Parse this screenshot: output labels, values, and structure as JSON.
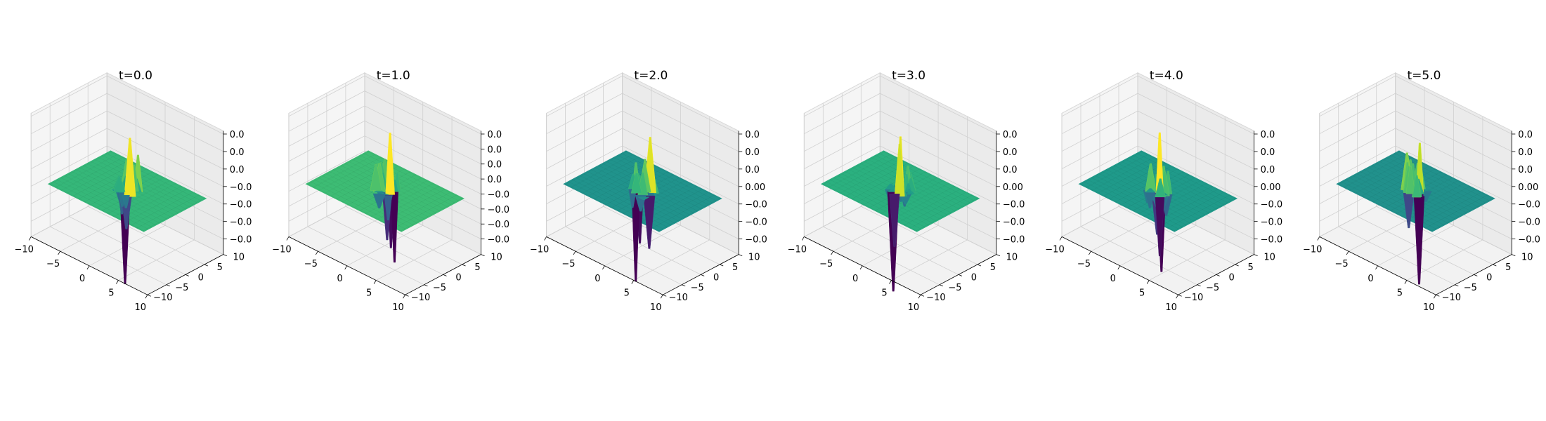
{
  "chart_data": [
    {
      "type": "surface3d",
      "title": "t=0.0",
      "x_ticks": [
        "-10",
        "-5",
        "0",
        "5",
        "10"
      ],
      "y_ticks": [
        "-10",
        "-5",
        "0",
        "5",
        "10"
      ],
      "z_ticks": [
        "0.0",
        "0.0",
        "0.0",
        "−0.0",
        "−0.0",
        "−0.0",
        "−0.0"
      ],
      "xlim": [
        -10,
        10
      ],
      "ylim": [
        -10,
        10
      ],
      "colormap": "viridis",
      "plane_color": "#35b779",
      "peak": [
        0.6,
        0.2,
        0.95
      ],
      "trough": [
        1.6,
        0.6,
        -1.0
      ]
    },
    {
      "type": "surface3d",
      "title": "t=1.0",
      "x_ticks": [
        "-10",
        "-5",
        "0",
        "5",
        "10"
      ],
      "y_ticks": [
        "-10",
        "-5",
        "0",
        "5",
        "10"
      ],
      "z_ticks": [
        "0.0",
        "0.0",
        "0.0",
        "0.0",
        "−0.0",
        "−0.0",
        "−0.0",
        "−0.0"
      ],
      "xlim": [
        -10,
        10
      ],
      "ylim": [
        -10,
        10
      ],
      "colormap": "viridis",
      "plane_color": "#3dbc74",
      "peak": [
        0.4,
        0.1,
        1.0
      ],
      "trough": [
        0.8,
        1.2,
        -1.0
      ]
    },
    {
      "type": "surface3d",
      "title": "t=2.0",
      "x_ticks": [
        "-10",
        "-5",
        "0",
        "5",
        "10"
      ],
      "y_ticks": [
        "-10",
        "-5",
        "0",
        "5",
        "10"
      ],
      "z_ticks": [
        "0.0",
        "0.0",
        "0.0",
        "0.00",
        "−0.0",
        "−0.0",
        "−0.0"
      ],
      "xlim": [
        -10,
        10
      ],
      "ylim": [
        -10,
        10
      ],
      "colormap": "viridis",
      "plane_color": "#20938c",
      "peak": [
        0.2,
        0.5,
        0.9
      ],
      "trough": [
        0.9,
        1.6,
        -1.0
      ]
    },
    {
      "type": "surface3d",
      "title": "t=3.0",
      "x_ticks": [
        "-10",
        "-5",
        "0",
        "5",
        "10"
      ],
      "y_ticks": [
        "-10",
        "-5",
        "0",
        "5",
        "10"
      ],
      "z_ticks": [
        "0.0",
        "0.0",
        "0.0",
        "0.00",
        "−0.0",
        "−0.0",
        "−0.0"
      ],
      "xlim": [
        -10,
        10
      ],
      "ylim": [
        -10,
        10
      ],
      "colormap": "viridis",
      "plane_color": "#2bb07f",
      "peak": [
        0.9,
        0.4,
        0.85
      ],
      "trough": [
        0.5,
        1.7,
        -0.9
      ]
    },
    {
      "type": "surface3d",
      "title": "t=4.0",
      "x_ticks": [
        "-10",
        "-5",
        "0",
        "5",
        "10"
      ],
      "y_ticks": [
        "-10",
        "-5",
        "0",
        "5",
        "10"
      ],
      "z_ticks": [
        "0.0",
        "0.0",
        "0.0",
        "0.00",
        "−0.0",
        "−0.0",
        "−0.0"
      ],
      "xlim": [
        -10,
        10
      ],
      "ylim": [
        -10,
        10
      ],
      "colormap": "viridis",
      "plane_color": "#1f9a8a",
      "peak": [
        0.1,
        0.3,
        1.0
      ],
      "trough": [
        0.7,
        1.4,
        -1.0
      ]
    },
    {
      "type": "surface3d",
      "title": "t=5.0",
      "x_ticks": [
        "-10",
        "-5",
        "0",
        "5",
        "10"
      ],
      "y_ticks": [
        "-10",
        "-5",
        "0",
        "5",
        "10"
      ],
      "z_ticks": [
        "0.0",
        "0.0",
        "0.0",
        "0.00",
        "−0.0",
        "−0.0",
        "−0.0"
      ],
      "xlim": [
        -10,
        10
      ],
      "ylim": [
        -10,
        10
      ],
      "colormap": "viridis",
      "plane_color": "#21918c",
      "peak": [
        0.4,
        0.6,
        0.8
      ],
      "trough": [
        1.5,
        1.0,
        -0.6
      ]
    }
  ]
}
